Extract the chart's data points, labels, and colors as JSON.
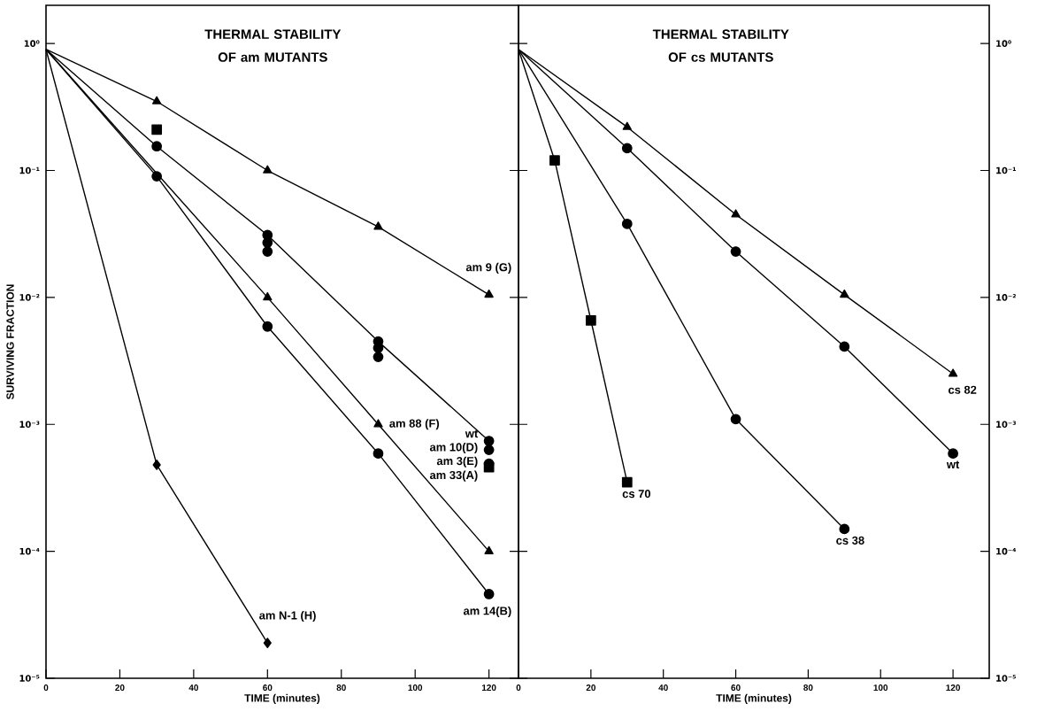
{
  "chart_data": [
    {
      "type": "line",
      "title": "THERMAL STABILITY OF am MUTANTS",
      "xlabel": "TIME (minutes)",
      "ylabel": "SURVIVING FRACTION",
      "log": "y",
      "xlim": [
        0,
        128
      ],
      "xticks": [
        0,
        20,
        40,
        60,
        80,
        100,
        120
      ],
      "ylim": [
        1e-05,
        2
      ],
      "yticks": [
        {
          "value": 1,
          "label": "10⁰"
        },
        {
          "value": 0.1,
          "label": "10⁻¹"
        },
        {
          "value": 0.01,
          "label": "10⁻²"
        },
        {
          "value": 0.001,
          "label": "10⁻³"
        },
        {
          "value": 0.0001,
          "label": "10⁻⁴"
        },
        {
          "value": 1e-05,
          "label": "10⁻⁵"
        }
      ],
      "series": [
        {
          "name": "am 9 (G)",
          "color": "#000000",
          "marker": "triangle",
          "x": [
            0,
            30,
            60,
            90,
            120
          ],
          "values": [
            0.9,
            0.35,
            0.1,
            0.036,
            0.0105
          ]
        },
        {
          "name": "wt",
          "color": "#000000",
          "marker": "circle",
          "x": [
            0,
            30,
            60,
            90,
            120
          ],
          "values": [
            0.9,
            0.155,
            0.031,
            0.0045,
            0.00074
          ]
        },
        {
          "name": "am 10(D)",
          "color": "#000000",
          "marker": "circle",
          "type": "scatter",
          "x": [
            60,
            90,
            120
          ],
          "values": [
            0.027,
            0.004,
            0.00063
          ]
        },
        {
          "name": "am 3(E)",
          "color": "#000000",
          "marker": "circle",
          "type": "scatter",
          "x": [
            60,
            90,
            120
          ],
          "values": [
            0.023,
            0.0034,
            0.00049
          ]
        },
        {
          "name": "am 33(A)",
          "color": "#000000",
          "marker": "square",
          "type": "scatter",
          "x": [
            30,
            120
          ],
          "values": [
            0.21,
            0.00046
          ]
        },
        {
          "name": "am 88 (F)",
          "color": "#000000",
          "marker": "triangle",
          "x": [
            0,
            60,
            90,
            120
          ],
          "values": [
            0.9,
            0.01,
            0.001,
            0.0001
          ]
        },
        {
          "name": "am 14(B)",
          "color": "#000000",
          "marker": "circle",
          "x": [
            0,
            30,
            60,
            90,
            120
          ],
          "values": [
            0.9,
            0.09,
            0.0059,
            0.00059,
            4.6e-05
          ]
        },
        {
          "name": "am N-1 (H)",
          "color": "#000000",
          "marker": "diamond",
          "x": [
            0,
            30,
            60
          ],
          "values": [
            0.9,
            0.00048,
            1.9e-05
          ]
        }
      ]
    },
    {
      "type": "line",
      "title": "THERMAL STABILITY OF cs MUTANTS",
      "xlabel": "TIME (minutes)",
      "log": "y",
      "xlim": [
        0,
        130
      ],
      "xticks": [
        0,
        20,
        40,
        60,
        80,
        100,
        120
      ],
      "ylim": [
        1e-05,
        2
      ],
      "yticks": [
        {
          "value": 1,
          "label": "10⁰"
        },
        {
          "value": 0.1,
          "label": "10⁻¹"
        },
        {
          "value": 0.01,
          "label": "10⁻²"
        },
        {
          "value": 0.001,
          "label": "10⁻³"
        },
        {
          "value": 0.0001,
          "label": "10⁻⁴"
        },
        {
          "value": 1e-05,
          "label": "10⁻⁵"
        }
      ],
      "series": [
        {
          "name": "cs 82",
          "color": "#000000",
          "marker": "triangle",
          "x": [
            0,
            30,
            60,
            90,
            120
          ],
          "values": [
            0.9,
            0.22,
            0.045,
            0.0105,
            0.0025
          ]
        },
        {
          "name": "wt",
          "color": "#000000",
          "marker": "circle",
          "x": [
            0,
            30,
            60,
            90,
            120
          ],
          "values": [
            0.9,
            0.15,
            0.023,
            0.0041,
            0.00059
          ]
        },
        {
          "name": "cs 38",
          "color": "#000000",
          "marker": "circle",
          "x": [
            0,
            30,
            60,
            90
          ],
          "values": [
            0.9,
            0.038,
            0.0011,
            0.00015
          ]
        },
        {
          "name": "cs 70",
          "color": "#000000",
          "marker": "square",
          "x": [
            0,
            10,
            20,
            30
          ],
          "values": [
            0.9,
            0.12,
            0.0066,
            0.00035
          ]
        }
      ]
    }
  ]
}
